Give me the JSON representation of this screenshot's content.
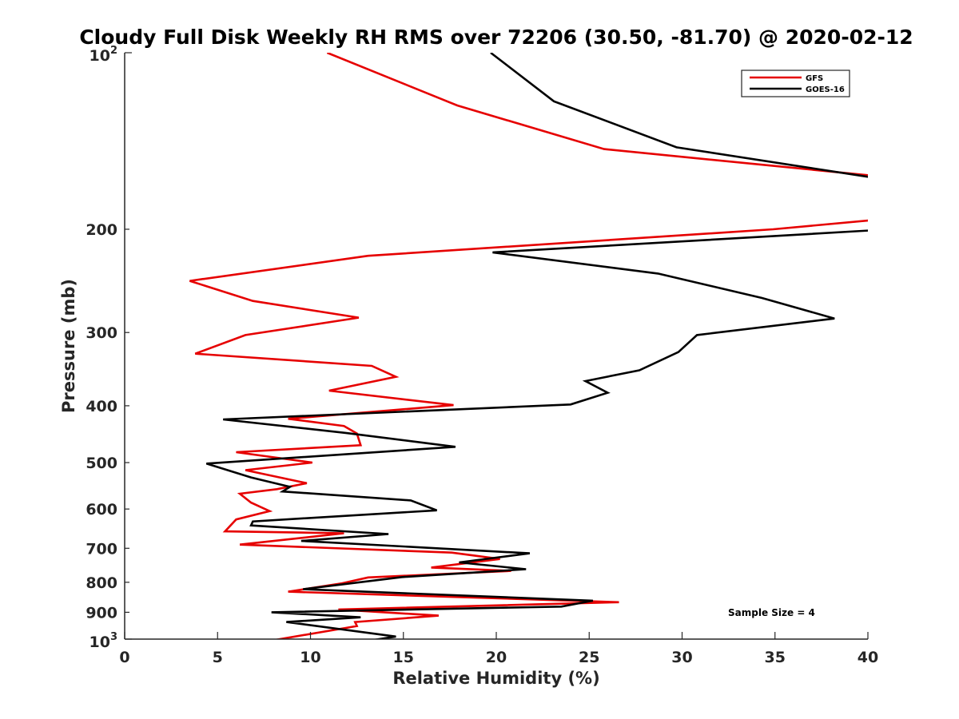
{
  "chart_data": {
    "type": "line",
    "title": "Cloudy Full Disk Weekly RH RMS over 72206 (30.50, -81.70) @ 2020-02-12",
    "xlabel": "Relative Humidity (%)",
    "ylabel": "Pressure (mb)",
    "xlim": [
      0,
      40
    ],
    "ylim": [
      100,
      1000
    ],
    "y_scale": "log",
    "y_reversed": true,
    "x_ticks": [
      0,
      5,
      10,
      15,
      20,
      25,
      30,
      35,
      40
    ],
    "x_tick_labels": [
      "0",
      "5",
      "10",
      "15",
      "20",
      "25",
      "30",
      "35",
      "40"
    ],
    "y_ticks": [
      200,
      300,
      400,
      500,
      600,
      700,
      800,
      900
    ],
    "y_tick_labels": [
      "200",
      "300",
      "400",
      "500",
      "600",
      "700",
      "800",
      "900"
    ],
    "y_tick_base": "10",
    "y_tick_top_exp": "2",
    "y_tick_bottom_exp": "3",
    "legend_position": "top-right",
    "annotation": "Sample Size = 4",
    "series": [
      {
        "name": "GFS",
        "color": "#e60000",
        "x": [
          10.9,
          17.9,
          25.8,
          40.2,
          40.2,
          34.9,
          13.1,
          3.5,
          6.9,
          12.6,
          6.5,
          3.8,
          13.3,
          14.6,
          11.0,
          17.7,
          8.8,
          11.8,
          12.5,
          12.7,
          6.0,
          10.1,
          6.5,
          9.8,
          8.2,
          6.2,
          6.8,
          7.8,
          6.0,
          5.4,
          11.8,
          6.2,
          17.6,
          20.2,
          16.5,
          20.8,
          13.1,
          11.7,
          8.8,
          26.6,
          11.5,
          16.9,
          12.4,
          12.5,
          8.1
        ],
        "y": [
          100,
          123,
          146,
          162,
          193,
          200,
          222,
          245,
          265,
          283,
          303,
          326,
          342,
          357,
          377,
          399,
          421,
          433,
          446,
          467,
          480,
          500,
          515,
          542,
          555,
          565,
          585,
          605,
          625,
          655,
          660,
          690,
          712,
          730,
          755,
          765,
          785,
          803,
          830,
          865,
          890,
          912,
          935,
          950,
          1003
        ]
      },
      {
        "name": "GOES-16",
        "color": "#000000",
        "x": [
          19.7,
          23.1,
          29.7,
          40.1,
          40.1,
          19.8,
          28.7,
          34.3,
          38.2,
          30.8,
          29.8,
          27.7,
          24.8,
          26.0,
          24.0,
          5.3,
          11.9,
          17.8,
          4.4,
          6.8,
          8.9,
          8.5,
          15.4,
          16.8,
          6.9,
          6.8,
          14.2,
          9.5,
          21.8,
          18.0,
          21.6,
          14.9,
          9.6,
          25.2,
          23.5,
          7.9,
          12.7,
          8.7,
          14.6,
          13.4
        ],
        "y": [
          100,
          121,
          145,
          163,
          201,
          219,
          238,
          262,
          284,
          303,
          324,
          348,
          363,
          380,
          398,
          422,
          445,
          470,
          502,
          530,
          550,
          560,
          580,
          603,
          630,
          640,
          662,
          680,
          714,
          740,
          760,
          784,
          822,
          860,
          880,
          900,
          918,
          935,
          990,
          1003
        ]
      }
    ]
  }
}
